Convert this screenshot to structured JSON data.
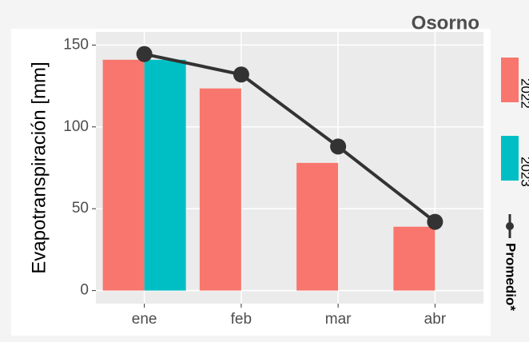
{
  "chart_data": {
    "type": "bar",
    "title": "Osorno",
    "y_label": "Evapotranspiración [mm]",
    "categories": [
      "ene",
      "feb",
      "mar",
      "abr"
    ],
    "series": [
      {
        "name": "2022",
        "color": "#F8766D",
        "values": [
          141,
          123.5,
          78,
          39
        ]
      },
      {
        "name": "2023",
        "color": "#00BFC4",
        "values": [
          141,
          null,
          null,
          null
        ]
      },
      {
        "name": "Promedio*",
        "type": "line",
        "color": "#333333",
        "values": [
          144.5,
          132,
          88,
          42
        ]
      }
    ],
    "ylim": [
      -8,
      158
    ],
    "yticks": [
      0,
      50,
      100,
      150
    ],
    "grid": true,
    "legend": "right"
  }
}
